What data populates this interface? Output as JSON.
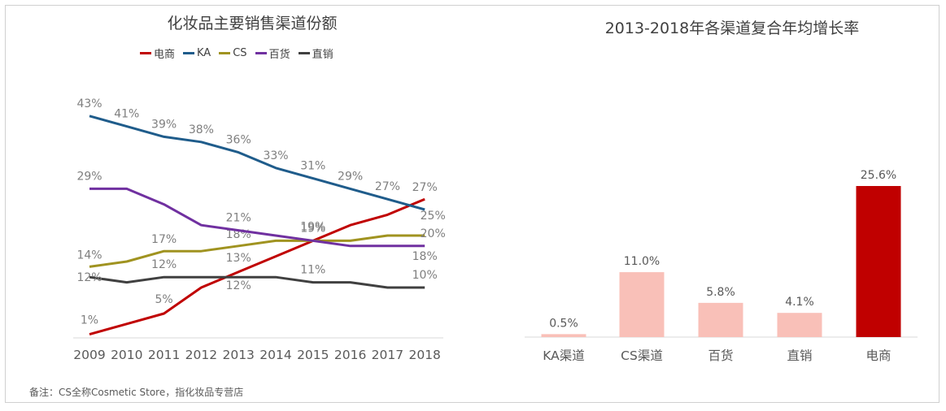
{
  "note": "备注：CS全称Cosmetic Store，指化妆品专营店",
  "chart_data": [
    {
      "type": "line",
      "title": "化妆品主要销售渠道份额",
      "x": [
        "2009",
        "2010",
        "2011",
        "2012",
        "2013",
        "2014",
        "2015",
        "2016",
        "2017",
        "2018"
      ],
      "ylim": [
        0,
        45
      ],
      "unit": "%",
      "legend_position": "top",
      "series": [
        {
          "name": "电商",
          "color": "#c00000",
          "values": [
            1,
            3,
            5,
            10,
            13,
            16,
            19,
            22,
            24,
            27
          ],
          "labels": [
            "1%",
            null,
            "5%",
            null,
            "13%",
            null,
            "19%",
            null,
            null,
            "27%"
          ]
        },
        {
          "name": "KA",
          "color": "#1f5c8b",
          "values": [
            43,
            41,
            39,
            38,
            36,
            33,
            31,
            29,
            27,
            25
          ],
          "labels": [
            "43%",
            "41%",
            "39%",
            "38%",
            "36%",
            "33%",
            "31%",
            "29%",
            "27%",
            "25%"
          ]
        },
        {
          "name": "CS",
          "color": "#a09320",
          "values": [
            14,
            15,
            17,
            17,
            18,
            19,
            19,
            19,
            20,
            20
          ],
          "labels": [
            "14%",
            null,
            "17%",
            null,
            "18%",
            null,
            null,
            null,
            null,
            "20%"
          ]
        },
        {
          "name": "百货",
          "color": "#7030a0",
          "values": [
            29,
            29,
            26,
            22,
            21,
            20,
            19,
            18,
            18,
            18
          ],
          "labels": [
            "29%",
            null,
            null,
            null,
            "21%",
            null,
            "19%",
            null,
            null,
            "18%"
          ]
        },
        {
          "name": "直销",
          "color": "#404040",
          "values": [
            12,
            11,
            12,
            12,
            12,
            12,
            11,
            11,
            10,
            10
          ],
          "labels": [
            "12%",
            null,
            "12%",
            null,
            "12%",
            null,
            "11%",
            null,
            null,
            "10%"
          ]
        }
      ]
    },
    {
      "type": "bar",
      "title": "2013-2018年各渠道复合年均增长率",
      "categories": [
        "KA渠道",
        "CS渠道",
        "百货",
        "直销",
        "电商"
      ],
      "values": [
        0.5,
        11.0,
        5.8,
        4.1,
        25.6
      ],
      "value_labels": [
        "0.5%",
        "11.0%",
        "5.8%",
        "4.1%",
        "25.6%"
      ],
      "colors": [
        "#f9c0b8",
        "#f9c0b8",
        "#f9c0b8",
        "#f9c0b8",
        "#c00000"
      ],
      "ylim": [
        0,
        25.6
      ]
    }
  ]
}
